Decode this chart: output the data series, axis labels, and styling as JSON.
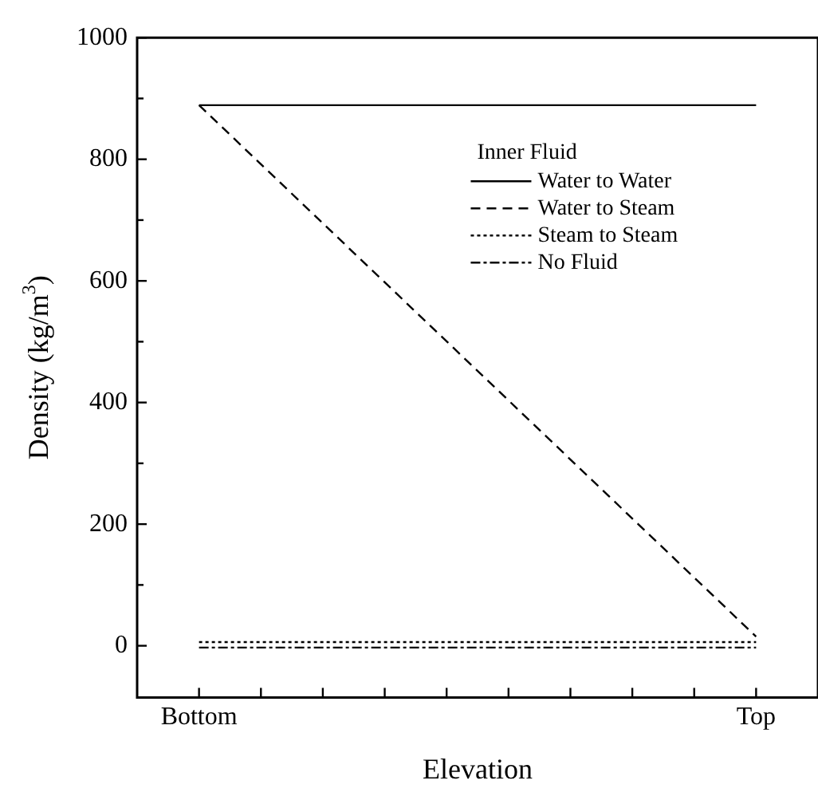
{
  "chart_data": {
    "type": "line",
    "xlabel": "Elevation",
    "ylabel": "Density (kg/m$^{3}$)",
    "legend_title": "Inner Fluid",
    "legend": "top right",
    "grid": false,
    "marker": "none",
    "categories": [
      "Bottom",
      null,
      null,
      null,
      null,
      null,
      null,
      null,
      null,
      "Top"
    ],
    "ylim": [
      -85,
      1000
    ],
    "yticks": [
      0,
      200,
      400,
      600,
      800,
      1000
    ],
    "series": [
      {
        "name": "Water to Water",
        "color": "#000000",
        "line_style": "solid",
        "values": [
          889,
          null,
          null,
          null,
          null,
          null,
          null,
          null,
          null,
          889
        ]
      },
      {
        "name": "Water to Steam",
        "color": "#000000",
        "line_style": "dashed",
        "values": [
          889,
          null,
          null,
          null,
          null,
          null,
          null,
          null,
          null,
          15
        ]
      },
      {
        "name": "Steam to Steam",
        "color": "#000000",
        "line_style": "dotted",
        "values": [
          6,
          null,
          null,
          null,
          null,
          null,
          null,
          null,
          null,
          6
        ]
      },
      {
        "name": "No Fluid",
        "color": "#000000",
        "line_style": "dashdot",
        "values": [
          -3,
          null,
          null,
          null,
          null,
          null,
          null,
          null,
          null,
          -3
        ]
      }
    ]
  }
}
